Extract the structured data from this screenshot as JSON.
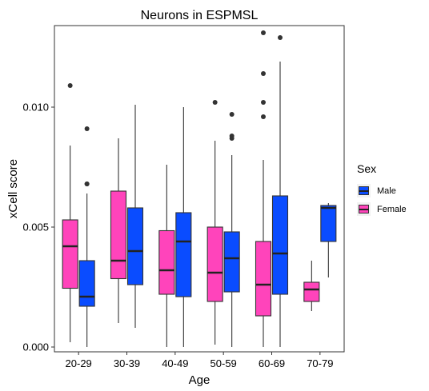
{
  "chart_data": {
    "type": "box",
    "title": "Neurons in ESPMSL",
    "xlabel": "Age",
    "ylabel": "xCell score",
    "categories": [
      "20-29",
      "30-39",
      "40-49",
      "50-59",
      "60-69",
      "70-79"
    ],
    "y_ticks": [
      "0.000",
      "0.005",
      "0.010"
    ],
    "y_tick_values": [
      0.0,
      0.005,
      0.01
    ],
    "ylim": [
      -0.0002,
      0.0134
    ],
    "legend": {
      "title": "Sex",
      "position": "right"
    },
    "series": [
      {
        "name": "Female",
        "color": "#ff44bb",
        "boxes": [
          {
            "category": "20-29",
            "whisker_low": 0.0002,
            "q1": 0.00245,
            "median": 0.0042,
            "q3": 0.0053,
            "whisker_high": 0.0084,
            "outliers": [
              0.0109
            ]
          },
          {
            "category": "30-39",
            "whisker_low": 0.001,
            "q1": 0.00285,
            "median": 0.0036,
            "q3": 0.0065,
            "whisker_high": 0.0087,
            "outliers": []
          },
          {
            "category": "40-49",
            "whisker_low": 0.0,
            "q1": 0.0022,
            "median": 0.0032,
            "q3": 0.00485,
            "whisker_high": 0.0076,
            "outliers": []
          },
          {
            "category": "50-59",
            "whisker_low": 0.0001,
            "q1": 0.0019,
            "median": 0.0031,
            "q3": 0.005,
            "whisker_high": 0.0086,
            "outliers": [
              0.0102
            ]
          },
          {
            "category": "60-69",
            "whisker_low": 0.0,
            "q1": 0.0013,
            "median": 0.0026,
            "q3": 0.0044,
            "whisker_high": 0.0078,
            "outliers": [
              0.0096,
              0.0102,
              0.0114,
              0.0131
            ]
          },
          {
            "category": "70-79",
            "whisker_low": 0.0015,
            "q1": 0.0019,
            "median": 0.0024,
            "q3": 0.0027,
            "whisker_high": 0.0036,
            "outliers": []
          }
        ]
      },
      {
        "name": "Male",
        "color": "#0a4cff",
        "boxes": [
          {
            "category": "20-29",
            "whisker_low": 0.0,
            "q1": 0.0017,
            "median": 0.0021,
            "q3": 0.0036,
            "whisker_high": 0.0064,
            "outliers": [
              0.0068,
              0.0068,
              0.0091
            ]
          },
          {
            "category": "30-39",
            "whisker_low": 0.0008,
            "q1": 0.0026,
            "median": 0.004,
            "q3": 0.0058,
            "whisker_high": 0.0101,
            "outliers": []
          },
          {
            "category": "40-49",
            "whisker_low": 0.0,
            "q1": 0.0021,
            "median": 0.0044,
            "q3": 0.0056,
            "whisker_high": 0.01,
            "outliers": []
          },
          {
            "category": "50-59",
            "whisker_low": 0.0,
            "q1": 0.0023,
            "median": 0.0037,
            "q3": 0.0048,
            "whisker_high": 0.008,
            "outliers": [
              0.0087,
              0.0088,
              0.0097
            ]
          },
          {
            "category": "60-69",
            "whisker_low": 0.0,
            "q1": 0.0022,
            "median": 0.0039,
            "q3": 0.0063,
            "whisker_high": 0.0119,
            "outliers": [
              0.0129
            ]
          },
          {
            "category": "70-79",
            "whisker_low": 0.0029,
            "q1": 0.0044,
            "median": 0.0058,
            "q3": 0.0059,
            "whisker_high": 0.006,
            "outliers": []
          }
        ]
      }
    ],
    "legend_items": [
      {
        "name": "Male",
        "color": "#0a4cff"
      },
      {
        "name": "Female",
        "color": "#ff44bb"
      }
    ],
    "grid": false
  }
}
